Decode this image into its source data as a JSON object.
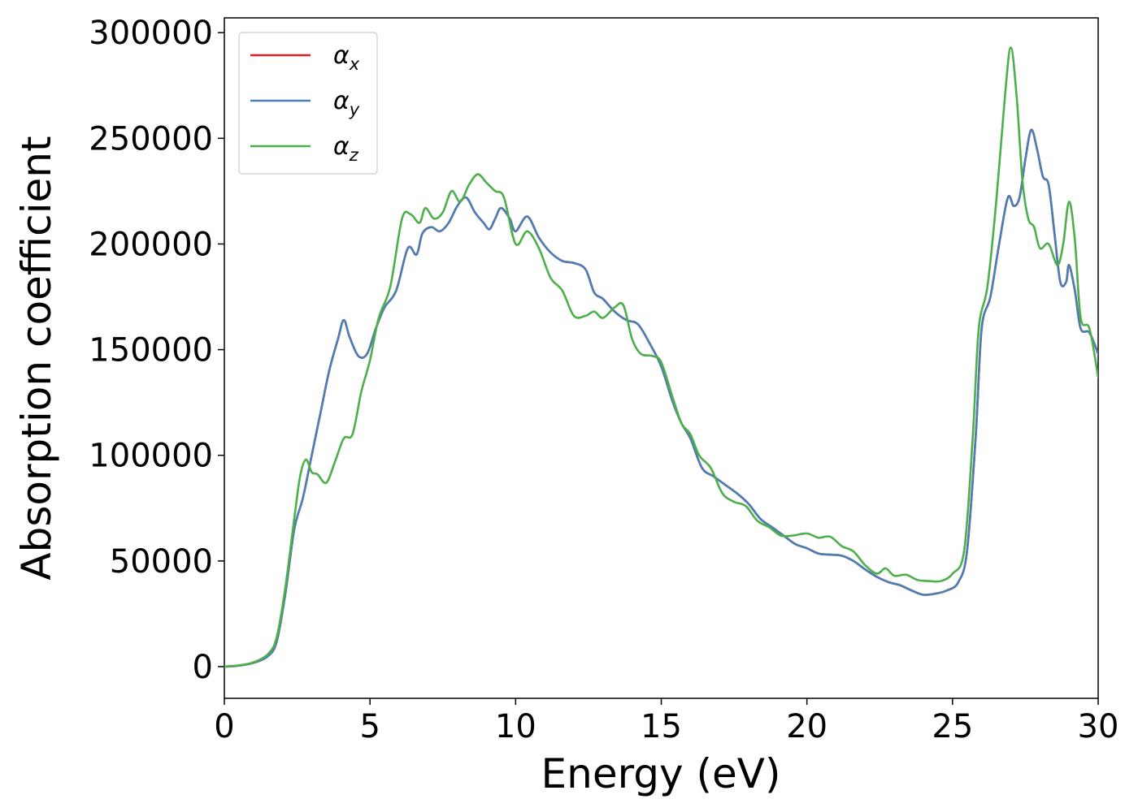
{
  "chart_data": {
    "type": "line",
    "title": "",
    "xlabel": "Energy (eV)",
    "ylabel": "Absorption coefficient",
    "xlim": [
      0,
      30
    ],
    "ylim": [
      -15000,
      307000
    ],
    "x_ticks": [
      0,
      5,
      10,
      15,
      20,
      25,
      30
    ],
    "y_ticks": [
      0,
      50000,
      100000,
      150000,
      200000,
      250000,
      300000
    ],
    "grid": false,
    "legend": "top-left",
    "series": [
      {
        "name": "α",
        "subscript": "x",
        "color": "#e41a1c",
        "points": [
          [
            0,
            0
          ],
          [
            0.5,
            500
          ],
          [
            1,
            1800
          ],
          [
            1.5,
            5000
          ],
          [
            1.8,
            12000
          ],
          [
            2.1,
            35000
          ],
          [
            2.4,
            65000
          ],
          [
            2.7,
            80000
          ],
          [
            3.0,
            100000
          ],
          [
            3.3,
            120000
          ],
          [
            3.6,
            140000
          ],
          [
            3.9,
            155000
          ],
          [
            4.1,
            164000
          ],
          [
            4.3,
            156000
          ],
          [
            4.6,
            147000
          ],
          [
            4.9,
            148000
          ],
          [
            5.2,
            160000
          ],
          [
            5.5,
            170000
          ],
          [
            5.9,
            178000
          ],
          [
            6.3,
            198000
          ],
          [
            6.6,
            195000
          ],
          [
            6.8,
            205000
          ],
          [
            7.1,
            208000
          ],
          [
            7.4,
            206000
          ],
          [
            7.7,
            210000
          ],
          [
            8.0,
            218000
          ],
          [
            8.3,
            222000
          ],
          [
            8.6,
            215000
          ],
          [
            8.9,
            210000
          ],
          [
            9.1,
            207000
          ],
          [
            9.3,
            212000
          ],
          [
            9.5,
            217000
          ],
          [
            9.8,
            212000
          ],
          [
            10.0,
            206000
          ],
          [
            10.4,
            213000
          ],
          [
            10.8,
            203000
          ],
          [
            11.2,
            196000
          ],
          [
            11.6,
            192000
          ],
          [
            12.0,
            191000
          ],
          [
            12.4,
            188000
          ],
          [
            12.7,
            177000
          ],
          [
            13.0,
            174000
          ],
          [
            13.4,
            168000
          ],
          [
            13.8,
            164000
          ],
          [
            14.2,
            162000
          ],
          [
            14.6,
            153000
          ],
          [
            15.0,
            142000
          ],
          [
            15.4,
            125000
          ],
          [
            15.7,
            115000
          ],
          [
            16.0,
            108000
          ],
          [
            16.4,
            94000
          ],
          [
            16.8,
            90000
          ],
          [
            17.2,
            86000
          ],
          [
            17.6,
            82000
          ],
          [
            18.0,
            77000
          ],
          [
            18.4,
            70000
          ],
          [
            18.8,
            66000
          ],
          [
            19.2,
            62000
          ],
          [
            19.6,
            58000
          ],
          [
            20.0,
            56000
          ],
          [
            20.4,
            53500
          ],
          [
            20.8,
            53000
          ],
          [
            21.2,
            52500
          ],
          [
            21.6,
            50000
          ],
          [
            22.0,
            46000
          ],
          [
            22.4,
            42500
          ],
          [
            22.8,
            40000
          ],
          [
            23.2,
            38500
          ],
          [
            23.6,
            36000
          ],
          [
            24.0,
            34000
          ],
          [
            24.4,
            34500
          ],
          [
            24.8,
            36000
          ],
          [
            25.2,
            40000
          ],
          [
            25.5,
            55000
          ],
          [
            25.8,
            110000
          ],
          [
            26.0,
            160000
          ],
          [
            26.3,
            175000
          ],
          [
            26.6,
            200000
          ],
          [
            26.9,
            222000
          ],
          [
            27.1,
            218000
          ],
          [
            27.3,
            222000
          ],
          [
            27.5,
            240000
          ],
          [
            27.7,
            254000
          ],
          [
            27.9,
            245000
          ],
          [
            28.1,
            232000
          ],
          [
            28.3,
            228000
          ],
          [
            28.5,
            205000
          ],
          [
            28.7,
            182000
          ],
          [
            28.9,
            182000
          ],
          [
            29.0,
            190000
          ],
          [
            29.2,
            178000
          ],
          [
            29.4,
            160000
          ],
          [
            29.7,
            158000
          ],
          [
            30.0,
            148000
          ]
        ]
      },
      {
        "name": "α",
        "subscript": "y",
        "color": "#4a7fb5",
        "points": [
          [
            0,
            0
          ],
          [
            0.5,
            500
          ],
          [
            1,
            1800
          ],
          [
            1.5,
            5000
          ],
          [
            1.8,
            12000
          ],
          [
            2.1,
            35000
          ],
          [
            2.4,
            65000
          ],
          [
            2.7,
            80000
          ],
          [
            3.0,
            100000
          ],
          [
            3.3,
            120000
          ],
          [
            3.6,
            140000
          ],
          [
            3.9,
            155000
          ],
          [
            4.1,
            164000
          ],
          [
            4.3,
            156000
          ],
          [
            4.6,
            147000
          ],
          [
            4.9,
            148000
          ],
          [
            5.2,
            160000
          ],
          [
            5.5,
            170000
          ],
          [
            5.9,
            178000
          ],
          [
            6.3,
            198000
          ],
          [
            6.6,
            195000
          ],
          [
            6.8,
            205000
          ],
          [
            7.1,
            208000
          ],
          [
            7.4,
            206000
          ],
          [
            7.7,
            210000
          ],
          [
            8.0,
            218000
          ],
          [
            8.3,
            222000
          ],
          [
            8.6,
            215000
          ],
          [
            8.9,
            210000
          ],
          [
            9.1,
            207000
          ],
          [
            9.3,
            212000
          ],
          [
            9.5,
            217000
          ],
          [
            9.8,
            212000
          ],
          [
            10.0,
            206000
          ],
          [
            10.4,
            213000
          ],
          [
            10.8,
            203000
          ],
          [
            11.2,
            196000
          ],
          [
            11.6,
            192000
          ],
          [
            12.0,
            191000
          ],
          [
            12.4,
            188000
          ],
          [
            12.7,
            177000
          ],
          [
            13.0,
            174000
          ],
          [
            13.4,
            168000
          ],
          [
            13.8,
            164000
          ],
          [
            14.2,
            162000
          ],
          [
            14.6,
            153000
          ],
          [
            15.0,
            142000
          ],
          [
            15.4,
            125000
          ],
          [
            15.7,
            115000
          ],
          [
            16.0,
            108000
          ],
          [
            16.4,
            94000
          ],
          [
            16.8,
            90000
          ],
          [
            17.2,
            86000
          ],
          [
            17.6,
            82000
          ],
          [
            18.0,
            77000
          ],
          [
            18.4,
            70000
          ],
          [
            18.8,
            66000
          ],
          [
            19.2,
            62000
          ],
          [
            19.6,
            58000
          ],
          [
            20.0,
            56000
          ],
          [
            20.4,
            53500
          ],
          [
            20.8,
            53000
          ],
          [
            21.2,
            52500
          ],
          [
            21.6,
            50000
          ],
          [
            22.0,
            46000
          ],
          [
            22.4,
            42500
          ],
          [
            22.8,
            40000
          ],
          [
            23.2,
            38500
          ],
          [
            23.6,
            36000
          ],
          [
            24.0,
            34000
          ],
          [
            24.4,
            34500
          ],
          [
            24.8,
            36000
          ],
          [
            25.2,
            40000
          ],
          [
            25.5,
            55000
          ],
          [
            25.8,
            110000
          ],
          [
            26.0,
            160000
          ],
          [
            26.3,
            175000
          ],
          [
            26.6,
            200000
          ],
          [
            26.9,
            222000
          ],
          [
            27.1,
            218000
          ],
          [
            27.3,
            222000
          ],
          [
            27.5,
            240000
          ],
          [
            27.7,
            254000
          ],
          [
            27.9,
            245000
          ],
          [
            28.1,
            232000
          ],
          [
            28.3,
            228000
          ],
          [
            28.5,
            205000
          ],
          [
            28.7,
            182000
          ],
          [
            28.9,
            182000
          ],
          [
            29.0,
            190000
          ],
          [
            29.2,
            178000
          ],
          [
            29.4,
            160000
          ],
          [
            29.7,
            158000
          ],
          [
            30.0,
            148000
          ]
        ]
      },
      {
        "name": "α",
        "subscript": "z",
        "color": "#4daf4a",
        "points": [
          [
            0,
            0
          ],
          [
            0.5,
            600
          ],
          [
            1,
            2000
          ],
          [
            1.5,
            6000
          ],
          [
            1.8,
            14000
          ],
          [
            2.1,
            38000
          ],
          [
            2.4,
            70000
          ],
          [
            2.6,
            90000
          ],
          [
            2.8,
            98000
          ],
          [
            3.0,
            92000
          ],
          [
            3.2,
            91000
          ],
          [
            3.5,
            87000
          ],
          [
            3.8,
            97000
          ],
          [
            4.1,
            108000
          ],
          [
            4.4,
            110000
          ],
          [
            4.7,
            130000
          ],
          [
            5.0,
            145000
          ],
          [
            5.3,
            165000
          ],
          [
            5.7,
            180000
          ],
          [
            6.1,
            212000
          ],
          [
            6.4,
            214000
          ],
          [
            6.7,
            210000
          ],
          [
            6.9,
            217000
          ],
          [
            7.2,
            212000
          ],
          [
            7.5,
            215000
          ],
          [
            7.8,
            225000
          ],
          [
            8.1,
            220000
          ],
          [
            8.4,
            228000
          ],
          [
            8.7,
            233000
          ],
          [
            9.0,
            229000
          ],
          [
            9.3,
            225000
          ],
          [
            9.6,
            222000
          ],
          [
            10.0,
            200000
          ],
          [
            10.4,
            206000
          ],
          [
            10.8,
            198000
          ],
          [
            11.2,
            184000
          ],
          [
            11.6,
            178000
          ],
          [
            12.0,
            166000
          ],
          [
            12.4,
            166000
          ],
          [
            12.7,
            168000
          ],
          [
            13.0,
            165000
          ],
          [
            13.4,
            170000
          ],
          [
            13.7,
            171000
          ],
          [
            14.0,
            155000
          ],
          [
            14.3,
            148000
          ],
          [
            14.7,
            147000
          ],
          [
            15.0,
            144000
          ],
          [
            15.4,
            127000
          ],
          [
            15.7,
            115000
          ],
          [
            16.0,
            110000
          ],
          [
            16.3,
            100000
          ],
          [
            16.7,
            94000
          ],
          [
            17.1,
            82000
          ],
          [
            17.5,
            78000
          ],
          [
            17.9,
            76000
          ],
          [
            18.3,
            69000
          ],
          [
            18.7,
            66000
          ],
          [
            19.1,
            62000
          ],
          [
            19.5,
            62000
          ],
          [
            20.0,
            63000
          ],
          [
            20.4,
            61000
          ],
          [
            20.8,
            61500
          ],
          [
            21.2,
            57000
          ],
          [
            21.6,
            54500
          ],
          [
            22.0,
            48000
          ],
          [
            22.4,
            44000
          ],
          [
            22.7,
            46500
          ],
          [
            23.0,
            43000
          ],
          [
            23.4,
            43500
          ],
          [
            23.8,
            41000
          ],
          [
            24.2,
            40500
          ],
          [
            24.6,
            40500
          ],
          [
            25.0,
            44000
          ],
          [
            25.4,
            55000
          ],
          [
            25.7,
            110000
          ],
          [
            25.9,
            160000
          ],
          [
            26.2,
            180000
          ],
          [
            26.5,
            220000
          ],
          [
            26.8,
            270000
          ],
          [
            27.0,
            293000
          ],
          [
            27.2,
            270000
          ],
          [
            27.4,
            230000
          ],
          [
            27.6,
            212000
          ],
          [
            27.8,
            208000
          ],
          [
            28.0,
            198000
          ],
          [
            28.3,
            200000
          ],
          [
            28.6,
            190000
          ],
          [
            28.8,
            200000
          ],
          [
            29.0,
            220000
          ],
          [
            29.2,
            202000
          ],
          [
            29.4,
            165000
          ],
          [
            29.7,
            160000
          ],
          [
            30.0,
            137000
          ]
        ]
      }
    ]
  }
}
